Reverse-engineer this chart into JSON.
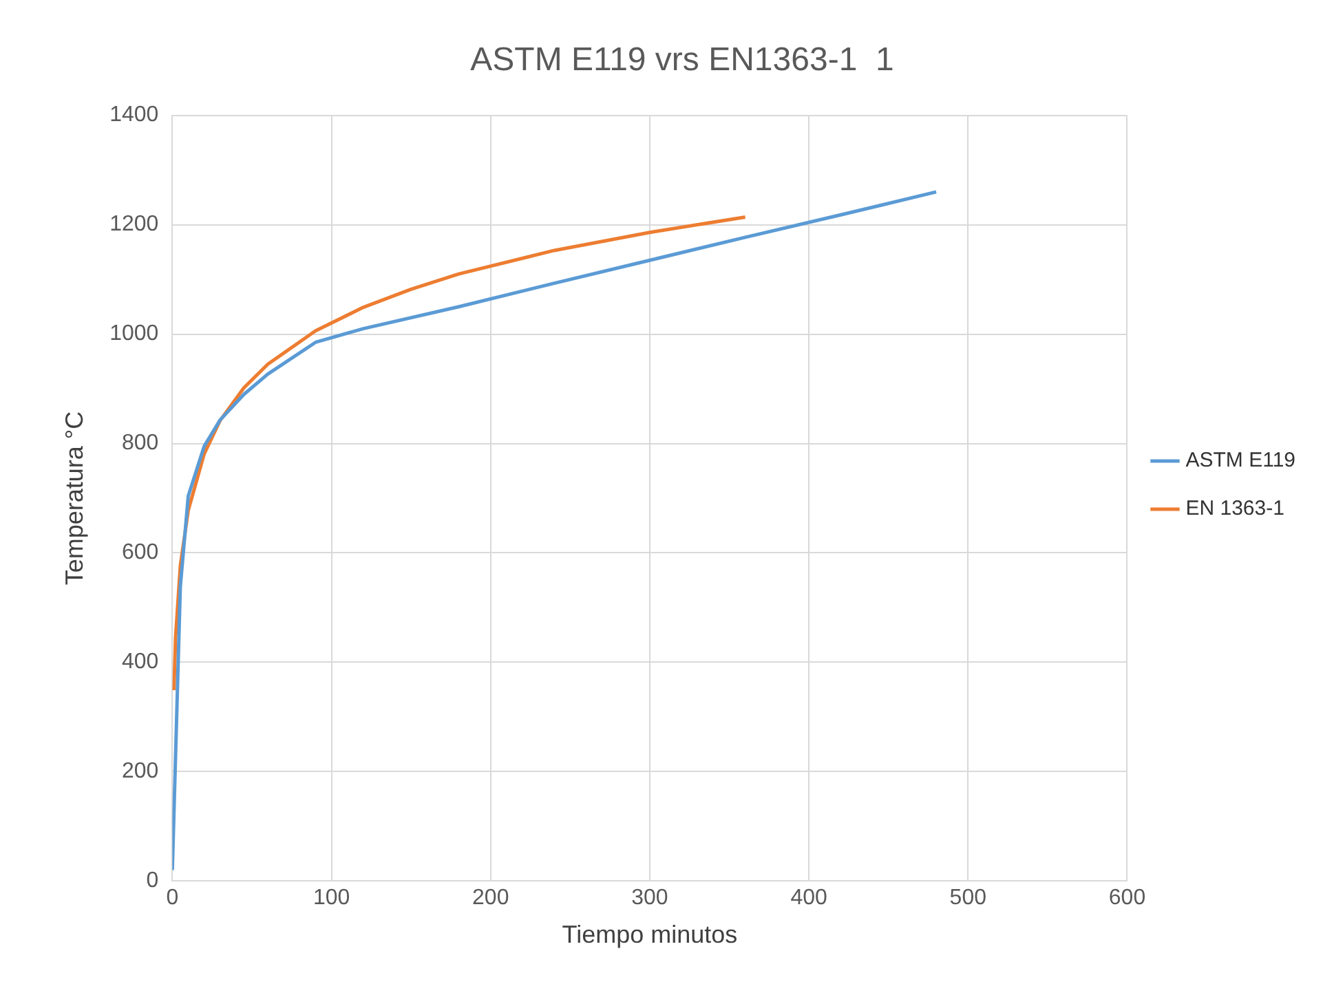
{
  "chart_data": {
    "type": "line",
    "title": "ASTM E119 vrs EN1363-1  1",
    "xlabel": "Tiempo minutos",
    "ylabel": "Temperatura °C",
    "xlim": [
      0,
      600
    ],
    "xticks": [
      0,
      100,
      200,
      300,
      400,
      500,
      600
    ],
    "ylim": [
      0,
      1400
    ],
    "yticks": [
      0,
      200,
      400,
      600,
      800,
      1000,
      1200,
      1400
    ],
    "grid": true,
    "legend": "right",
    "marker": "none",
    "line_style": "solid",
    "series": [
      {
        "name": "ASTM E119",
        "color": "#5b9bd5",
        "x": [
          0,
          5,
          10,
          20,
          30,
          45,
          60,
          90,
          120,
          180,
          240,
          300,
          360,
          420,
          480
        ],
        "values": [
          20,
          538,
          704,
          795,
          843,
          890,
          927,
          985,
          1010,
          1050,
          1093,
          1135,
          1177,
          1218,
          1260
        ]
      },
      {
        "name": "EN 1363-1",
        "color": "#ed7d31",
        "x": [
          1,
          2,
          5,
          10,
          20,
          30,
          45,
          60,
          90,
          120,
          150,
          180,
          240,
          300,
          360
        ],
        "values": [
          349,
          445,
          576,
          678,
          781,
          842,
          902,
          945,
          1006,
          1049,
          1082,
          1110,
          1153,
          1186,
          1214
        ]
      }
    ]
  }
}
